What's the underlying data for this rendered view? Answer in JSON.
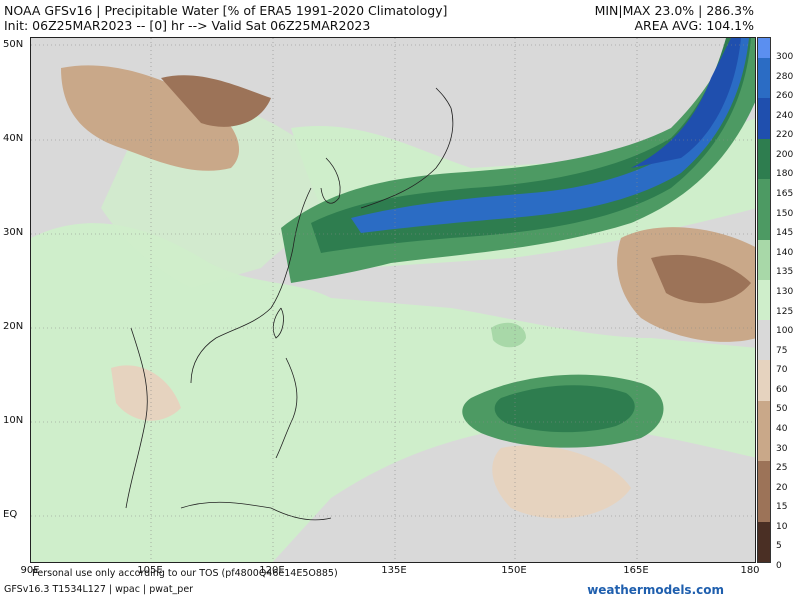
{
  "header": {
    "title": "NOAA GFSv16 | Precipitable Water [% of ERA5 1991-2020 Climatology]",
    "init": "Init: 06Z25MAR2023 -- [0] hr --> Valid Sat 06Z25MAR2023",
    "minmax": "MIN|MAX 23.0% | 286.3%",
    "area_avg": "AREA AVG: 104.1%"
  },
  "axes": {
    "lat_labels": [
      "50N",
      "40N",
      "30N",
      "20N",
      "10N",
      "EQ"
    ],
    "lon_labels": [
      "90E",
      "105E",
      "120E",
      "135E",
      "150E",
      "165E",
      "180"
    ]
  },
  "colorbar": {
    "labels": [
      "300",
      "280",
      "260",
      "240",
      "220",
      "200",
      "180",
      "165",
      "150",
      "145",
      "140",
      "135",
      "130",
      "125",
      "100",
      "75",
      "70",
      "60",
      "50",
      "40",
      "30",
      "25",
      "20",
      "15",
      "10",
      "5",
      "0"
    ],
    "colors": {
      "top": "#5b8ff0",
      "blue_dark": "#1f4fae",
      "blue_mid": "#2b6cc4",
      "green_dark": "#2e7d4f",
      "green_mid": "#4d9a63",
      "green_light": "#a8d8a8",
      "green_pale": "#cfeecb",
      "gray": "#d9d9d9",
      "tan_light": "#e6d3bf",
      "tan": "#c9a889",
      "brown": "#9c7358",
      "brown_dark": "#4a2f24"
    }
  },
  "footer": {
    "tos": "Personal use only according to our TOS (pf4800Q46e14E5O885)",
    "version": "GFSv16.3 T1534L127 | wpac | pwat_per",
    "brand": "weathermodels.com"
  }
}
